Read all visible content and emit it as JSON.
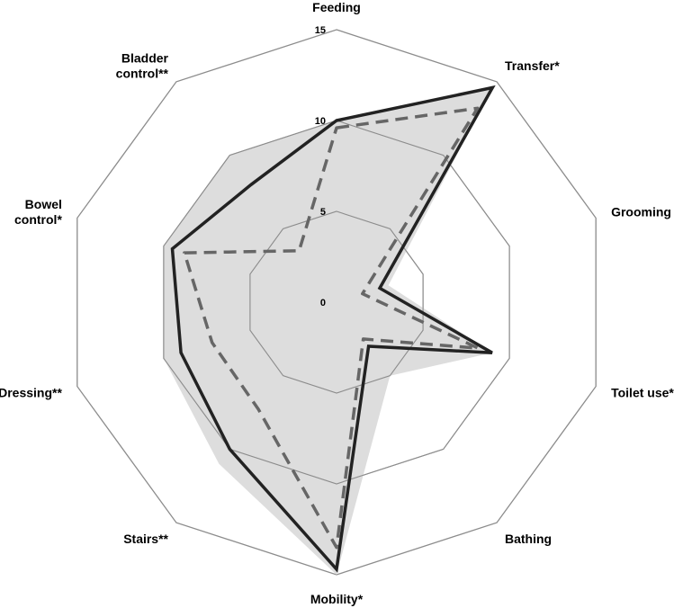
{
  "chart_data": {
    "type": "radar",
    "axes": [
      "Feeding",
      "Transfer*",
      "Grooming",
      "Toilet use*",
      "Bathing",
      "Mobility*",
      "Stairs**",
      "Dressing**",
      "Bowel control*",
      "Bladder control**"
    ],
    "axis_label_lines": [
      [
        "Feeding"
      ],
      [
        "Transfer*"
      ],
      [
        "Grooming"
      ],
      [
        "Toilet use*"
      ],
      [
        "Bathing"
      ],
      [
        "Mobility*"
      ],
      [
        "Stairs**"
      ],
      [
        "Dressing**"
      ],
      [
        "Bowel",
        "control*"
      ],
      [
        "Bladder",
        "control**"
      ]
    ],
    "rlim": [
      0,
      15
    ],
    "ticks": [
      0,
      5,
      10,
      15
    ],
    "series": [
      {
        "style": "filled-area",
        "color": "#d9d9d9",
        "values": [
          10,
          14.5,
          3,
          9,
          5,
          15,
          11,
          10,
          10,
          10
        ]
      },
      {
        "style": "solid",
        "color": "#222222",
        "values": [
          10,
          14.6,
          2.5,
          9,
          3,
          14.7,
          10,
          9,
          9.5,
          8
        ]
      },
      {
        "style": "dashed",
        "color": "#666666",
        "values": [
          9.6,
          13.2,
          1.5,
          8.2,
          2.5,
          13.5,
          7.3,
          7.2,
          8.8,
          3.5
        ]
      }
    ],
    "legend": "none",
    "grid": true
  }
}
